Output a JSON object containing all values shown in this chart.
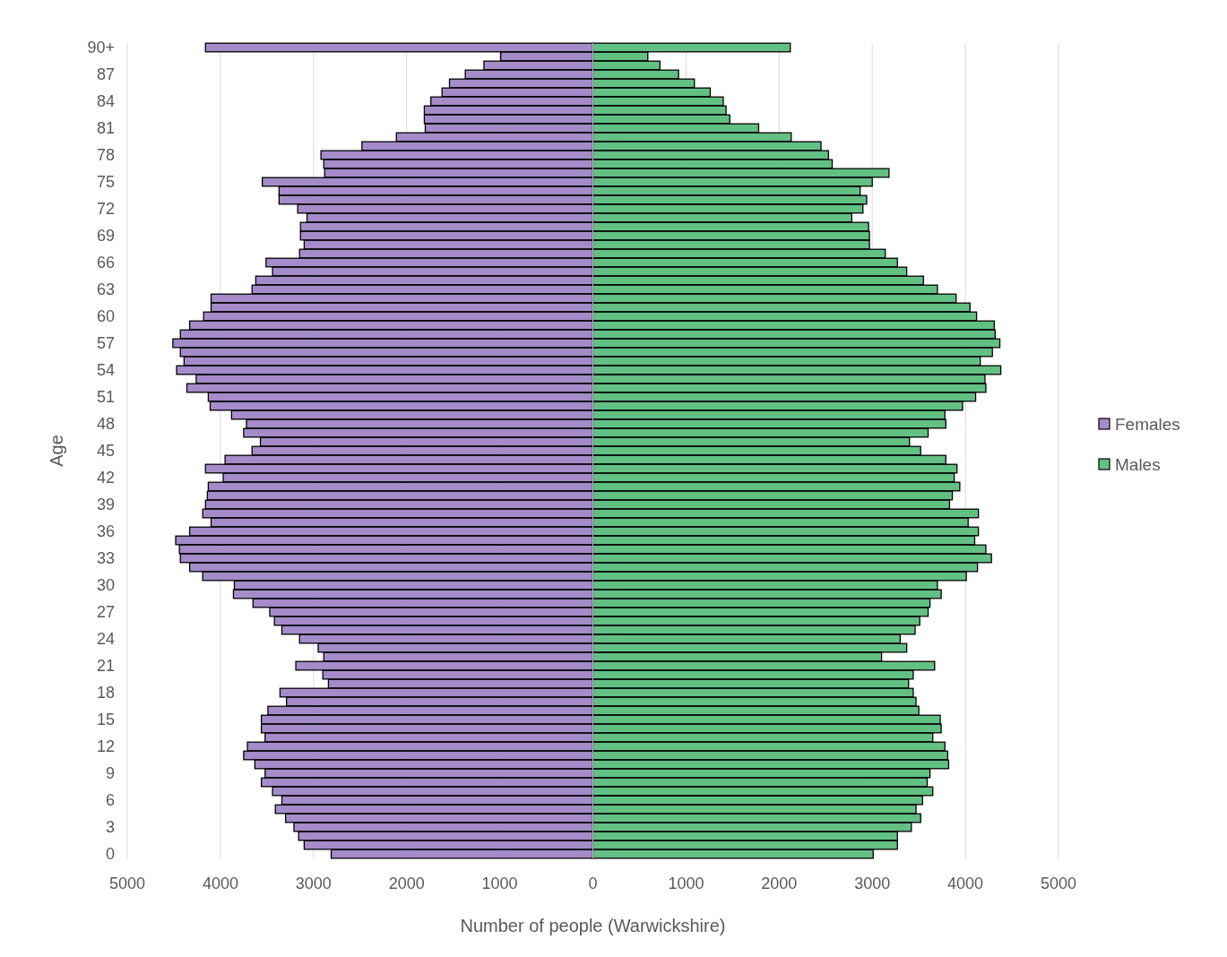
{
  "chart_data": {
    "type": "bar",
    "orientation": "horizontal",
    "stacked": true,
    "xlabel": "Number of people (Warwickshire)",
    "ylabel": "Age",
    "categories": [
      "90+",
      null,
      null,
      "87",
      null,
      null,
      "84",
      null,
      null,
      "81",
      null,
      null,
      "78",
      null,
      null,
      "75",
      null,
      null,
      "72",
      null,
      null,
      "69",
      null,
      null,
      "66",
      null,
      null,
      "63",
      null,
      null,
      "60",
      null,
      null,
      "57",
      null,
      null,
      "54",
      null,
      null,
      "51",
      null,
      null,
      "48",
      null,
      null,
      "45",
      null,
      null,
      "42",
      null,
      null,
      "39",
      null,
      null,
      "36",
      null,
      null,
      "33",
      null,
      null,
      "30",
      null,
      null,
      "27",
      null,
      null,
      "24",
      null,
      null,
      "21",
      null,
      null,
      "18",
      null,
      null,
      "15",
      null,
      null,
      "12",
      null,
      null,
      "9",
      null,
      null,
      "6",
      null,
      null,
      "3",
      null,
      null,
      "0"
    ],
    "series": [
      {
        "name": "Females",
        "color": "#a58bc9",
        "values": [
          -4160,
          -990,
          -1170,
          -1370,
          -1540,
          -1620,
          -1740,
          -1810,
          -1810,
          -1800,
          -2110,
          -2480,
          -2920,
          -2890,
          -2880,
          -3550,
          -3370,
          -3370,
          -3170,
          -3070,
          -3140,
          -3140,
          -3100,
          -3150,
          -3510,
          -3440,
          -3620,
          -3660,
          -4100,
          -4100,
          -4180,
          -4330,
          -4430,
          -4510,
          -4430,
          -4390,
          -4470,
          -4260,
          -4360,
          -4130,
          -4110,
          -3880,
          -3720,
          -3750,
          -3570,
          -3660,
          -3950,
          -4160,
          -3970,
          -4130,
          -4140,
          -4160,
          -4190,
          -4100,
          -4330,
          -4480,
          -4440,
          -4430,
          -4330,
          -4190,
          -3850,
          -3860,
          -3650,
          -3470,
          -3420,
          -3340,
          -3150,
          -2950,
          -2890,
          -3190,
          -2900,
          -2840,
          -3360,
          -3290,
          -3490,
          -3560,
          -3560,
          -3520,
          -3710,
          -3750,
          -3630,
          -3520,
          -3560,
          -3440,
          -3340,
          -3410,
          -3300,
          -3210,
          -3160,
          -3100,
          -2810
        ]
      },
      {
        "name": "Males",
        "color": "#62c083",
        "values": [
          2120,
          590,
          720,
          920,
          1090,
          1260,
          1400,
          1430,
          1470,
          1780,
          2130,
          2450,
          2530,
          2570,
          3180,
          3000,
          2870,
          2940,
          2900,
          2780,
          2960,
          2970,
          2970,
          3140,
          3270,
          3370,
          3550,
          3700,
          3900,
          4050,
          4120,
          4310,
          4320,
          4370,
          4290,
          4160,
          4380,
          4210,
          4220,
          4110,
          3970,
          3780,
          3790,
          3600,
          3400,
          3520,
          3790,
          3910,
          3880,
          3940,
          3860,
          3830,
          4140,
          4030,
          4140,
          4100,
          4220,
          4280,
          4130,
          4010,
          3700,
          3740,
          3620,
          3600,
          3510,
          3460,
          3300,
          3370,
          3100,
          3670,
          3440,
          3390,
          3440,
          3470,
          3500,
          3730,
          3740,
          3650,
          3780,
          3810,
          3820,
          3620,
          3590,
          3650,
          3540,
          3470,
          3520,
          3420,
          3270,
          3270,
          3010
        ]
      }
    ],
    "xlim": [
      -5000,
      5000
    ],
    "xticks": [
      {
        "value": -5000,
        "label": "5000"
      },
      {
        "value": -4000,
        "label": "4000"
      },
      {
        "value": -3000,
        "label": "3000"
      },
      {
        "value": -2000,
        "label": "2000"
      },
      {
        "value": -1000,
        "label": "1000"
      },
      0,
      1000,
      2000,
      3000,
      4000,
      5000
    ],
    "grid": "x",
    "legend": "right"
  }
}
